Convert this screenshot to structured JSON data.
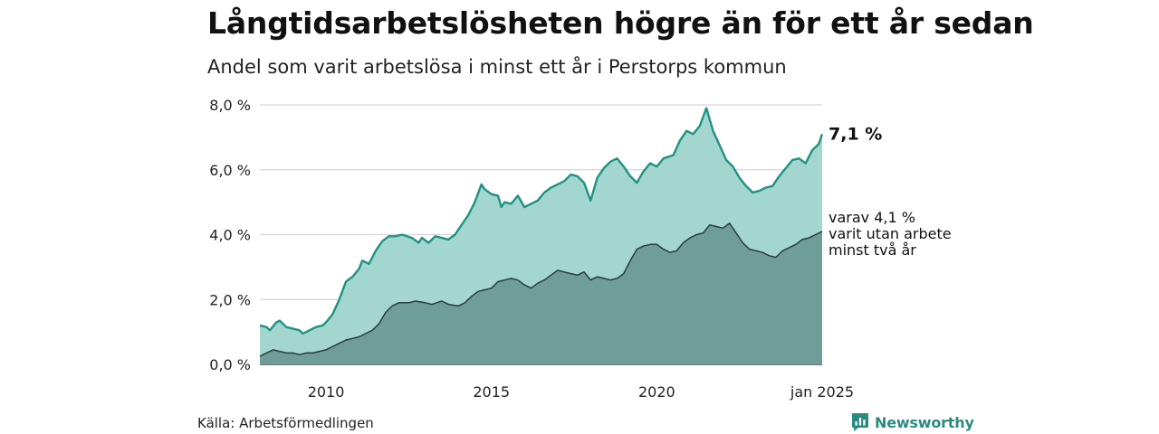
{
  "title": "Långtidsarbetslösheten högre än för ett år sedan",
  "subtitle": "Andel som varit arbetslösa i minst ett år i Perstorps kommun",
  "source": "Källa: Arbetsförmedlingen",
  "brand": {
    "name": "Newsworthy",
    "icon": "newsworthy-logo-icon"
  },
  "colors": {
    "area_1yr": "#a3d6cf",
    "line_1yr": "#1f9383",
    "area_2yr": "#6f9e98",
    "line_2yr": "#2c3b38",
    "gridline": "#d6d6d6",
    "brand": "#2a8c80"
  },
  "chart_data": {
    "type": "area",
    "x_start": "2008-01",
    "x_end": "2025-01",
    "x_ticks": [
      {
        "x": 2010,
        "label": "2010"
      },
      {
        "x": 2015,
        "label": "2015"
      },
      {
        "x": 2020,
        "label": "2020"
      },
      {
        "x": 2025,
        "label": "jan 2025"
      }
    ],
    "y_ticks": [
      {
        "y": 0,
        "label": "0,0 %"
      },
      {
        "y": 2,
        "label": "2,0 %"
      },
      {
        "y": 4,
        "label": "4,0 %"
      },
      {
        "y": 6,
        "label": "6,0 %"
      },
      {
        "y": 8,
        "label": "8,0 %"
      }
    ],
    "ylim": [
      0,
      8
    ],
    "grid": true,
    "series": [
      {
        "values": [
          [
            2008.0,
            1.2
          ],
          [
            2008.2,
            1.15
          ],
          [
            2008.3,
            1.05
          ],
          [
            2008.5,
            1.3
          ],
          [
            2008.6,
            1.35
          ],
          [
            2008.8,
            1.15
          ],
          [
            2009.0,
            1.1
          ],
          [
            2009.2,
            1.05
          ],
          [
            2009.3,
            0.95
          ],
          [
            2009.5,
            1.05
          ],
          [
            2009.7,
            1.15
          ],
          [
            2009.9,
            1.2
          ],
          [
            2010.0,
            1.3
          ],
          [
            2010.2,
            1.55
          ],
          [
            2010.4,
            2.0
          ],
          [
            2010.6,
            2.55
          ],
          [
            2010.8,
            2.7
          ],
          [
            2011.0,
            2.95
          ],
          [
            2011.1,
            3.2
          ],
          [
            2011.3,
            3.1
          ],
          [
            2011.5,
            3.5
          ],
          [
            2011.7,
            3.8
          ],
          [
            2011.9,
            3.95
          ],
          [
            2012.1,
            3.95
          ],
          [
            2012.3,
            4.0
          ],
          [
            2012.6,
            3.9
          ],
          [
            2012.8,
            3.75
          ],
          [
            2012.9,
            3.9
          ],
          [
            2013.1,
            3.75
          ],
          [
            2013.3,
            3.95
          ],
          [
            2013.5,
            3.9
          ],
          [
            2013.7,
            3.85
          ],
          [
            2013.9,
            4.0
          ],
          [
            2014.1,
            4.3
          ],
          [
            2014.3,
            4.6
          ],
          [
            2014.5,
            5.0
          ],
          [
            2014.7,
            5.55
          ],
          [
            2014.8,
            5.4
          ],
          [
            2015.0,
            5.25
          ],
          [
            2015.2,
            5.2
          ],
          [
            2015.3,
            4.85
          ],
          [
            2015.4,
            5.0
          ],
          [
            2015.6,
            4.95
          ],
          [
            2015.8,
            5.2
          ],
          [
            2016.0,
            4.85
          ],
          [
            2016.2,
            4.95
          ],
          [
            2016.4,
            5.05
          ],
          [
            2016.6,
            5.3
          ],
          [
            2016.8,
            5.45
          ],
          [
            2017.0,
            5.55
          ],
          [
            2017.2,
            5.65
          ],
          [
            2017.4,
            5.85
          ],
          [
            2017.6,
            5.8
          ],
          [
            2017.8,
            5.6
          ],
          [
            2018.0,
            5.05
          ],
          [
            2018.2,
            5.75
          ],
          [
            2018.4,
            6.05
          ],
          [
            2018.6,
            6.25
          ],
          [
            2018.8,
            6.35
          ],
          [
            2019.0,
            6.1
          ],
          [
            2019.2,
            5.8
          ],
          [
            2019.4,
            5.6
          ],
          [
            2019.6,
            5.95
          ],
          [
            2019.8,
            6.2
          ],
          [
            2020.0,
            6.1
          ],
          [
            2020.2,
            6.35
          ],
          [
            2020.5,
            6.45
          ],
          [
            2020.7,
            6.9
          ],
          [
            2020.9,
            7.2
          ],
          [
            2021.1,
            7.1
          ],
          [
            2021.3,
            7.35
          ],
          [
            2021.5,
            7.9
          ],
          [
            2021.7,
            7.2
          ],
          [
            2021.9,
            6.75
          ],
          [
            2022.1,
            6.3
          ],
          [
            2022.3,
            6.1
          ],
          [
            2022.5,
            5.75
          ],
          [
            2022.7,
            5.5
          ],
          [
            2022.9,
            5.3
          ],
          [
            2023.1,
            5.35
          ],
          [
            2023.3,
            5.45
          ],
          [
            2023.5,
            5.5
          ],
          [
            2023.7,
            5.8
          ],
          [
            2023.9,
            6.05
          ],
          [
            2024.1,
            6.3
          ],
          [
            2024.3,
            6.35
          ],
          [
            2024.5,
            6.2
          ],
          [
            2024.7,
            6.6
          ],
          [
            2024.9,
            6.8
          ],
          [
            2025.0,
            7.1
          ]
        ]
      },
      {
        "values": [
          [
            2008.0,
            0.25
          ],
          [
            2008.2,
            0.35
          ],
          [
            2008.4,
            0.45
          ],
          [
            2008.6,
            0.4
          ],
          [
            2008.8,
            0.35
          ],
          [
            2009.0,
            0.35
          ],
          [
            2009.2,
            0.3
          ],
          [
            2009.4,
            0.35
          ],
          [
            2009.6,
            0.35
          ],
          [
            2009.8,
            0.4
          ],
          [
            2010.0,
            0.45
          ],
          [
            2010.2,
            0.55
          ],
          [
            2010.4,
            0.65
          ],
          [
            2010.6,
            0.75
          ],
          [
            2010.8,
            0.8
          ],
          [
            2011.0,
            0.85
          ],
          [
            2011.2,
            0.95
          ],
          [
            2011.4,
            1.05
          ],
          [
            2011.6,
            1.25
          ],
          [
            2011.8,
            1.6
          ],
          [
            2012.0,
            1.8
          ],
          [
            2012.2,
            1.9
          ],
          [
            2012.5,
            1.9
          ],
          [
            2012.7,
            1.95
          ],
          [
            2013.0,
            1.9
          ],
          [
            2013.2,
            1.85
          ],
          [
            2013.5,
            1.95
          ],
          [
            2013.7,
            1.85
          ],
          [
            2014.0,
            1.8
          ],
          [
            2014.2,
            1.9
          ],
          [
            2014.4,
            2.1
          ],
          [
            2014.6,
            2.25
          ],
          [
            2014.8,
            2.3
          ],
          [
            2015.0,
            2.35
          ],
          [
            2015.2,
            2.55
          ],
          [
            2015.4,
            2.6
          ],
          [
            2015.6,
            2.65
          ],
          [
            2015.8,
            2.6
          ],
          [
            2016.0,
            2.45
          ],
          [
            2016.2,
            2.35
          ],
          [
            2016.4,
            2.5
          ],
          [
            2016.6,
            2.6
          ],
          [
            2016.8,
            2.75
          ],
          [
            2017.0,
            2.9
          ],
          [
            2017.2,
            2.85
          ],
          [
            2017.4,
            2.8
          ],
          [
            2017.6,
            2.75
          ],
          [
            2017.8,
            2.85
          ],
          [
            2018.0,
            2.6
          ],
          [
            2018.2,
            2.7
          ],
          [
            2018.4,
            2.65
          ],
          [
            2018.6,
            2.6
          ],
          [
            2018.8,
            2.65
          ],
          [
            2019.0,
            2.8
          ],
          [
            2019.2,
            3.2
          ],
          [
            2019.4,
            3.55
          ],
          [
            2019.6,
            3.65
          ],
          [
            2019.8,
            3.7
          ],
          [
            2020.0,
            3.7
          ],
          [
            2020.2,
            3.55
          ],
          [
            2020.4,
            3.45
          ],
          [
            2020.6,
            3.5
          ],
          [
            2020.8,
            3.75
          ],
          [
            2021.0,
            3.9
          ],
          [
            2021.2,
            4.0
          ],
          [
            2021.4,
            4.05
          ],
          [
            2021.6,
            4.3
          ],
          [
            2021.8,
            4.25
          ],
          [
            2022.0,
            4.2
          ],
          [
            2022.2,
            4.35
          ],
          [
            2022.4,
            4.05
          ],
          [
            2022.6,
            3.75
          ],
          [
            2022.8,
            3.55
          ],
          [
            2023.0,
            3.5
          ],
          [
            2023.2,
            3.45
          ],
          [
            2023.4,
            3.35
          ],
          [
            2023.6,
            3.3
          ],
          [
            2023.8,
            3.5
          ],
          [
            2024.0,
            3.6
          ],
          [
            2024.2,
            3.7
          ],
          [
            2024.4,
            3.85
          ],
          [
            2024.6,
            3.9
          ],
          [
            2024.8,
            4.0
          ],
          [
            2025.0,
            4.1
          ]
        ]
      }
    ],
    "end_label": "7,1 %",
    "annotation_lines": [
      "varav 4,1 %",
      "varit utan arbete",
      "minst två år"
    ]
  }
}
